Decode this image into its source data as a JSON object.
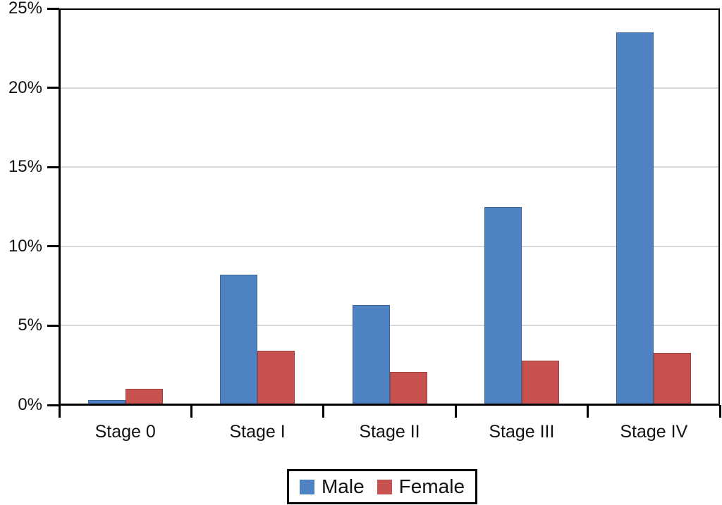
{
  "chart_data": {
    "type": "bar",
    "title": "",
    "xlabel": "",
    "ylabel": "",
    "categories": [
      "Stage 0",
      "Stage I",
      "Stage II",
      "Stage III",
      "Stage IV"
    ],
    "series": [
      {
        "name": "Male",
        "color": "#4E82C3",
        "values": [
          0.3,
          8.2,
          6.3,
          12.5,
          23.5
        ]
      },
      {
        "name": "Female",
        "color": "#C85250",
        "values": [
          1.0,
          3.4,
          2.1,
          2.8,
          3.3
        ]
      }
    ],
    "ylim": [
      0,
      25
    ],
    "ytick_step": 5,
    "ytick_values": [
      0,
      5,
      10,
      15,
      20,
      25
    ],
    "ytick_labels": [
      "0%",
      "5%",
      "10%",
      "15%",
      "20%",
      "25%"
    ],
    "grid": true,
    "gridline_color": "#D9D9D9",
    "axis_color": "#000000",
    "background_color": "#FFFFFF",
    "legend_position": "bottom",
    "legend_border_color": "#000000"
  }
}
